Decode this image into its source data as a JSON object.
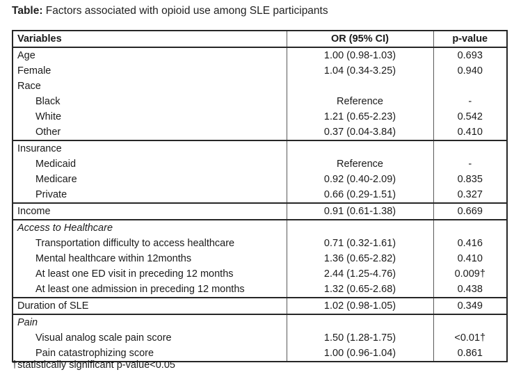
{
  "title": {
    "label": "Table:",
    "text": " Factors associated with opioid use among SLE participants"
  },
  "table": {
    "headers": {
      "variables": "Variables",
      "or": "OR (95% CI)",
      "p": "p-value"
    },
    "sections": [
      {
        "rows": [
          {
            "variable": "Age",
            "indent": false,
            "italic": false,
            "or": "1.00 (0.98-1.03)",
            "p": "0.693"
          },
          {
            "variable": "Female",
            "indent": false,
            "italic": false,
            "or": "1.04 (0.34-3.25)",
            "p": "0.940"
          },
          {
            "variable": "Race",
            "indent": false,
            "italic": false,
            "or": "",
            "p": ""
          },
          {
            "variable": "Black",
            "indent": true,
            "italic": false,
            "or": "Reference",
            "p": "-"
          },
          {
            "variable": "White",
            "indent": true,
            "italic": false,
            "or": "1.21 (0.65-2.23)",
            "p": "0.542"
          },
          {
            "variable": "Other",
            "indent": true,
            "italic": false,
            "or": "0.37 (0.04-3.84)",
            "p": "0.410"
          }
        ]
      },
      {
        "rows": [
          {
            "variable": "Insurance",
            "indent": false,
            "italic": false,
            "or": "",
            "p": ""
          },
          {
            "variable": "Medicaid",
            "indent": true,
            "italic": false,
            "or": "Reference",
            "p": "-"
          },
          {
            "variable": "Medicare",
            "indent": true,
            "italic": false,
            "or": "0.92 (0.40-2.09)",
            "p": "0.835"
          },
          {
            "variable": "Private",
            "indent": true,
            "italic": false,
            "or": "0.66 (0.29-1.51)",
            "p": "0.327"
          }
        ]
      },
      {
        "rows": [
          {
            "variable": "Income",
            "indent": false,
            "italic": false,
            "or": "0.91 (0.61-1.38)",
            "p": "0.669"
          }
        ]
      },
      {
        "rows": [
          {
            "variable": "Access to Healthcare",
            "indent": false,
            "italic": true,
            "or": "",
            "p": ""
          },
          {
            "variable": "Transportation difficulty to access healthcare",
            "indent": true,
            "italic": false,
            "or": "0.71 (0.32-1.61)",
            "p": "0.416"
          },
          {
            "variable": "Mental healthcare within 12months",
            "indent": true,
            "italic": false,
            "or": "1.36 (0.65-2.82)",
            "p": "0.410"
          },
          {
            "variable": "At least one ED visit in preceding 12 months",
            "indent": true,
            "italic": false,
            "or": "2.44 (1.25-4.76)",
            "p": "0.009†"
          },
          {
            "variable": "At least one admission in preceding 12 months",
            "indent": true,
            "italic": false,
            "or": "1.32 (0.65-2.68)",
            "p": "0.438"
          }
        ]
      },
      {
        "rows": [
          {
            "variable": "Duration of SLE",
            "indent": false,
            "italic": false,
            "or": "1.02 (0.98-1.05)",
            "p": "0.349"
          }
        ]
      },
      {
        "rows": [
          {
            "variable": "Pain",
            "indent": false,
            "italic": true,
            "or": "",
            "p": ""
          },
          {
            "variable": "Visual analog scale pain score",
            "indent": true,
            "italic": false,
            "or": "1.50 (1.28-1.75)",
            "p": "<0.01†"
          },
          {
            "variable": "Pain catastrophizing score",
            "indent": true,
            "italic": false,
            "or": "1.00 (0.96-1.04)",
            "p": "0.861"
          }
        ]
      }
    ]
  },
  "footnote": "†statistically significant p-value<0.05"
}
